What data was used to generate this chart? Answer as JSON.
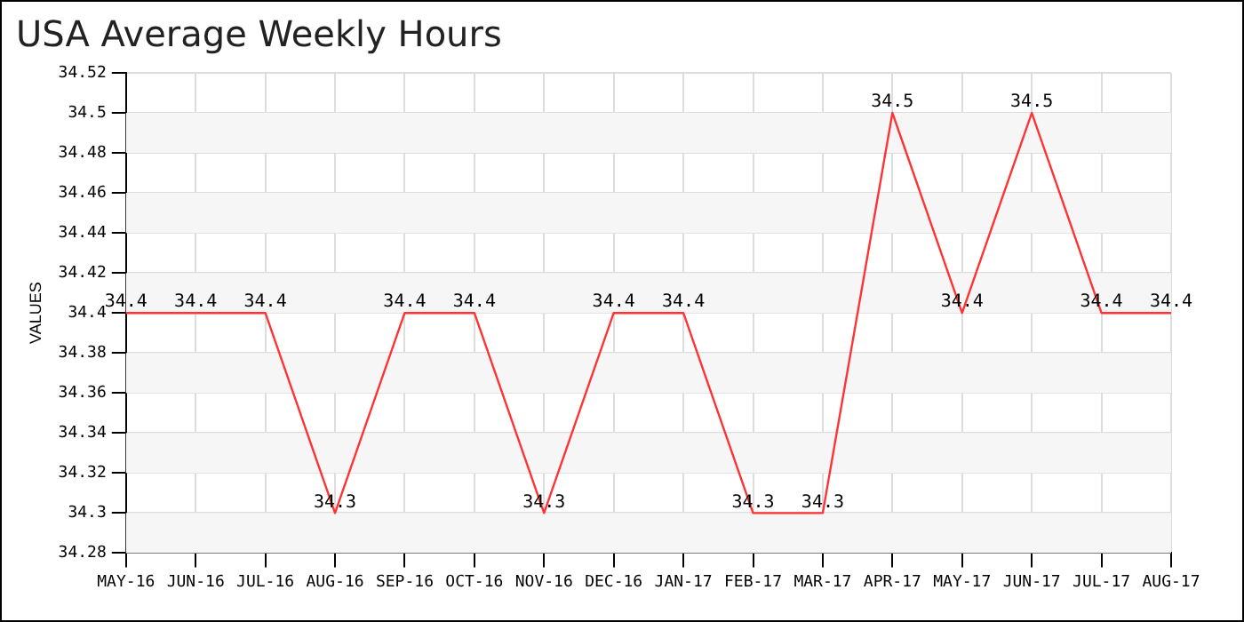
{
  "chart_data": {
    "type": "line",
    "title": "USA Average Weekly Hours",
    "ylabel": "VALUES",
    "categories": [
      "MAY-16",
      "JUN-16",
      "JUL-16",
      "AUG-16",
      "SEP-16",
      "OCT-16",
      "NOV-16",
      "DEC-16",
      "JAN-17",
      "FEB-17",
      "MAR-17",
      "APR-17",
      "MAY-17",
      "JUN-17",
      "JUL-17",
      "AUG-17"
    ],
    "series": [
      {
        "color": "#ff3333",
        "values": [
          34.4,
          34.4,
          34.4,
          34.3,
          34.4,
          34.4,
          34.3,
          34.4,
          34.4,
          34.3,
          34.3,
          34.5,
          34.4,
          34.5,
          34.4,
          34.4
        ]
      }
    ],
    "ylim": [
      34.28,
      34.52
    ],
    "yticks": [
      34.28,
      34.3,
      34.32,
      34.34,
      34.36,
      34.38,
      34.4,
      34.42,
      34.44,
      34.46,
      34.48,
      34.5,
      34.52
    ],
    "grid": true,
    "marker": "none",
    "line_style": "solid",
    "data_labels": true
  }
}
